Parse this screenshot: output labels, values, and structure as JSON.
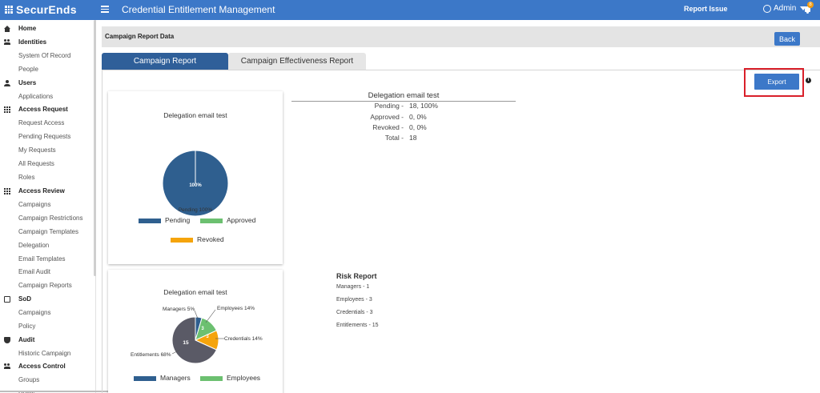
{
  "topbar": {
    "brand": "SecurEnds",
    "title": "Credential Entitlement Management",
    "report_issue": "Report Issue",
    "user": "Admin",
    "notifications": "8"
  },
  "sidebar": {
    "items": [
      {
        "label": "Home",
        "type": "section",
        "icon": "home-icon"
      },
      {
        "label": "Identities",
        "type": "section",
        "icon": "people-icon"
      },
      {
        "label": "System Of Record",
        "type": "item"
      },
      {
        "label": "People",
        "type": "item"
      },
      {
        "label": "Users",
        "type": "section",
        "icon": "user-icon"
      },
      {
        "label": "Applications",
        "type": "item"
      },
      {
        "label": "Access Request",
        "type": "section",
        "icon": "grid-icon"
      },
      {
        "label": "Request Access",
        "type": "item"
      },
      {
        "label": "Pending Requests",
        "type": "item"
      },
      {
        "label": "My Requests",
        "type": "item"
      },
      {
        "label": "All Requests",
        "type": "item"
      },
      {
        "label": "Roles",
        "type": "item"
      },
      {
        "label": "Access Review",
        "type": "section",
        "icon": "grid-icon"
      },
      {
        "label": "Campaigns",
        "type": "item"
      },
      {
        "label": "Campaign Restrictions",
        "type": "item"
      },
      {
        "label": "Campaign Templates",
        "type": "item"
      },
      {
        "label": "Delegation",
        "type": "item"
      },
      {
        "label": "Email Templates",
        "type": "item"
      },
      {
        "label": "Email Audit",
        "type": "item"
      },
      {
        "label": "Campaign Reports",
        "type": "item"
      },
      {
        "label": "SoD",
        "type": "section",
        "icon": "list-icon"
      },
      {
        "label": "Campaigns",
        "type": "item"
      },
      {
        "label": "Policy",
        "type": "item"
      },
      {
        "label": "Audit",
        "type": "section",
        "icon": "shield-icon"
      },
      {
        "label": "Historic Campaign",
        "type": "item"
      },
      {
        "label": "Access Control",
        "type": "section",
        "icon": "user-gear-icon"
      },
      {
        "label": "Groups",
        "type": "item"
      },
      {
        "label": "Rules",
        "type": "item"
      }
    ]
  },
  "page": {
    "header": "Campaign Report Data",
    "back": "Back",
    "tabs": [
      "Campaign Report",
      "Campaign Effectiveness Report"
    ],
    "export": "Export"
  },
  "charts": {
    "status": {
      "title": "Delegation email test",
      "center_label": "100%",
      "slice_label": "Pending 100%",
      "legend": [
        {
          "name": "Pending",
          "color": "#2f5f8f"
        },
        {
          "name": "Approved",
          "color": "#6cc070"
        },
        {
          "name": "Revoked",
          "color": "#f5a40c"
        }
      ]
    },
    "risk": {
      "title": "Delegation email test",
      "slice_labels": [
        "Managers 5%",
        "Employees 14%",
        "Credentials 14%",
        "Entitlements 68%"
      ],
      "inner_labels": [
        "3",
        "3",
        "15"
      ],
      "legend": [
        {
          "name": "Managers",
          "color": "#2f5f8f"
        },
        {
          "name": "Employees",
          "color": "#6cc070"
        }
      ]
    }
  },
  "chart_data": [
    {
      "type": "pie",
      "title": "Delegation email test",
      "categories": [
        "Pending",
        "Approved",
        "Revoked"
      ],
      "values": [
        100,
        0,
        0
      ],
      "colors": [
        "#2f5f8f",
        "#6cc070",
        "#f5a40c"
      ],
      "legend": "bottom"
    },
    {
      "type": "pie",
      "title": "Delegation email test",
      "categories": [
        "Managers",
        "Employees",
        "Credentials",
        "Entitlements"
      ],
      "values": [
        1,
        3,
        3,
        15
      ],
      "percent_labels": [
        "5%",
        "14%",
        "14%",
        "68%"
      ],
      "colors": [
        "#2f5f8f",
        "#6cc070",
        "#f5a40c",
        "#5a5a66"
      ],
      "legend": "bottom"
    }
  ],
  "summary": {
    "title": "Delegation email test",
    "rows": [
      {
        "label": "Pending -",
        "value": "18, 100%"
      },
      {
        "label": "Approved -",
        "value": "0, 0%"
      },
      {
        "label": "Revoked -",
        "value": "0, 0%"
      },
      {
        "label": "Total -",
        "value": "18"
      }
    ]
  },
  "risk_report": {
    "title": "Risk Report",
    "lines": [
      "Managers - 1",
      "Employees - 3",
      "Credentials - 3",
      "Entitlements - 15"
    ]
  }
}
